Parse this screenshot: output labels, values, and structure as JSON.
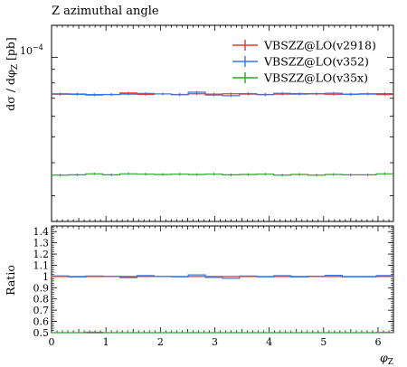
{
  "chart_data": {
    "type": "line",
    "title": "Z azimuthal angle",
    "main": {
      "ylabel": "dσ / dφ_Z [pb]",
      "ylabel_parts": {
        "prefix": "dσ / dφ",
        "sub": "Z",
        "suffix": " [pb]"
      },
      "yscale": "log",
      "ytick_label": "10",
      "ytick_exp": "−4",
      "legend_position": "top-right"
    },
    "ratio": {
      "ylabel": "Ratio",
      "ylim": [
        0.5,
        1.45
      ],
      "yticks": [
        "0.5",
        "0.6",
        "0.7",
        "0.8",
        "0.9",
        "1",
        "1.1",
        "1.2",
        "1.3",
        "1.4"
      ]
    },
    "xlabel": "φ_Z",
    "xlabel_parts": {
      "prefix": "φ",
      "sub": "Z"
    },
    "xlim": [
      0,
      6.2832
    ],
    "xticks": [
      "0",
      "1",
      "2",
      "3",
      "4",
      "5",
      "6"
    ],
    "x_edges": [
      0,
      0.31416,
      0.62832,
      0.94248,
      1.25664,
      1.5708,
      1.88496,
      2.19912,
      2.51327,
      2.82743,
      3.14159,
      3.45575,
      3.76991,
      4.08407,
      4.39823,
      4.71239,
      5.02655,
      5.34071,
      5.65487,
      5.96903,
      6.28319
    ],
    "series": [
      {
        "name": "VBSZZ@LO(v2918)",
        "color": "#e8382a",
        "values": [
          7.25e-05,
          7.27e-05,
          7.2e-05,
          7.23e-05,
          7.33e-05,
          7.24e-05,
          7.27e-05,
          7.24e-05,
          7.28e-05,
          7.26e-05,
          7.28e-05,
          7.26e-05,
          7.24e-05,
          7.26e-05,
          7.29e-05,
          7.27e-05,
          7.25e-05,
          7.26e-05,
          7.28e-05,
          7.23e-05
        ],
        "ratio": [
          1.0,
          1.0,
          1.0,
          1.0,
          1.0,
          1.0,
          1.0,
          1.0,
          1.0,
          1.0,
          1.0,
          1.0,
          1.0,
          1.0,
          1.0,
          1.0,
          1.0,
          1.0,
          1.0,
          1.0
        ]
      },
      {
        "name": "VBSZZ@LO(v352)",
        "color": "#3a75e8",
        "values": [
          7.28e-05,
          7.24e-05,
          7.23e-05,
          7.24e-05,
          7.26e-05,
          7.3e-05,
          7.27e-05,
          7.22e-05,
          7.38e-05,
          7.2e-05,
          7.16e-05,
          7.29e-05,
          7.22e-05,
          7.31e-05,
          7.26e-05,
          7.29e-05,
          7.32e-05,
          7.24e-05,
          7.26e-05,
          7.29e-05
        ],
        "ratio": [
          1.005,
          0.996,
          1.004,
          1.001,
          0.99,
          1.008,
          1.0,
          0.997,
          1.014,
          0.992,
          0.984,
          1.004,
          0.997,
          1.007,
          0.996,
          1.002,
          1.01,
          0.997,
          0.997,
          1.008
        ]
      },
      {
        "name": "VBSZZ@LO(v35x)",
        "color": "#2aa52a",
        "values": [
          3.59e-05,
          3.6e-05,
          3.63e-05,
          3.6e-05,
          3.63e-05,
          3.62e-05,
          3.61e-05,
          3.62e-05,
          3.61e-05,
          3.62e-05,
          3.6e-05,
          3.61e-05,
          3.62e-05,
          3.59e-05,
          3.61e-05,
          3.59e-05,
          3.61e-05,
          3.6e-05,
          3.6e-05,
          3.63e-05
        ],
        "ratio": [
          0.495,
          0.495,
          0.504,
          0.498,
          0.495,
          0.5,
          0.496,
          0.5,
          0.496,
          0.499,
          0.494,
          0.497,
          0.5,
          0.494,
          0.495,
          0.494,
          0.498,
          0.496,
          0.494,
          0.502
        ]
      }
    ]
  }
}
